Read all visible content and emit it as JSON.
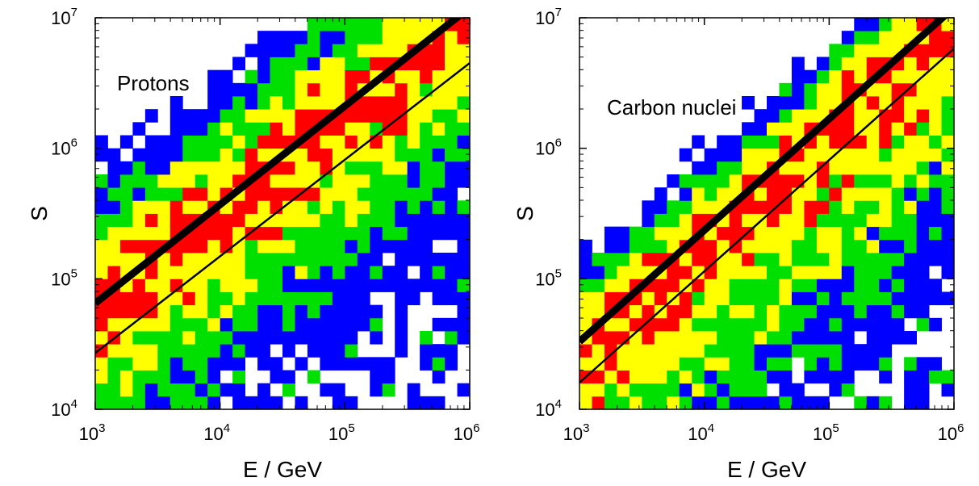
{
  "chart_data": [
    {
      "type": "heatmap",
      "title": "Protons",
      "xlabel": "E / GeV",
      "ylabel": "S",
      "x_scale": "log",
      "y_scale": "log",
      "xlim": [
        1000,
        1000000
      ],
      "ylim": [
        10000,
        10000000
      ],
      "x_ticks": [
        {
          "base": "10",
          "exp": "3"
        },
        {
          "base": "10",
          "exp": "4"
        },
        {
          "base": "10",
          "exp": "5"
        },
        {
          "base": "10",
          "exp": "6"
        }
      ],
      "y_ticks": [
        {
          "base": "10",
          "exp": "4"
        },
        {
          "base": "10",
          "exp": "5"
        },
        {
          "base": "10",
          "exp": "6"
        },
        {
          "base": "10",
          "exp": "7"
        }
      ],
      "color_levels": [
        "#0000ff",
        "#00e000",
        "#ffff00",
        "#ff0000"
      ],
      "bins": {
        "x_count": 30,
        "y_count": 30
      },
      "band": {
        "upper_offset": 1.6,
        "upper_width": 0.9,
        "lower_offset": -0.35,
        "lower_width": 1.5
      },
      "lines": [
        {
          "style": "thick",
          "x": [
            1000,
            1000000
          ],
          "y": [
            65000,
            12000000
          ]
        },
        {
          "style": "thin",
          "x": [
            1000,
            1000000
          ],
          "y": [
            27000,
            4500000
          ]
        }
      ],
      "grid": false
    },
    {
      "type": "heatmap",
      "title": "Carbon nuclei",
      "xlabel": "E / GeV",
      "ylabel": "S",
      "x_scale": "log",
      "y_scale": "log",
      "xlim": [
        1000,
        1000000
      ],
      "ylim": [
        10000,
        10000000
      ],
      "x_ticks": [
        {
          "base": "10",
          "exp": "3"
        },
        {
          "base": "10",
          "exp": "4"
        },
        {
          "base": "10",
          "exp": "5"
        },
        {
          "base": "10",
          "exp": "6"
        }
      ],
      "y_ticks": [
        {
          "base": "10",
          "exp": "4"
        },
        {
          "base": "10",
          "exp": "5"
        },
        {
          "base": "10",
          "exp": "6"
        },
        {
          "base": "10",
          "exp": "7"
        }
      ],
      "color_levels": [
        "#0000ff",
        "#00e000",
        "#ffff00",
        "#ff0000"
      ],
      "bins": {
        "x_count": 30,
        "y_count": 30
      },
      "band": {
        "upper_offset": 1.2,
        "upper_width": 0.55,
        "lower_offset": -0.7,
        "lower_width": 1.9
      },
      "lines": [
        {
          "style": "thick",
          "x": [
            1000,
            1000000
          ],
          "y": [
            33000,
            12000000
          ]
        },
        {
          "style": "thin",
          "x": [
            1000,
            1000000
          ],
          "y": [
            16000,
            5800000
          ]
        }
      ],
      "grid": false
    }
  ]
}
